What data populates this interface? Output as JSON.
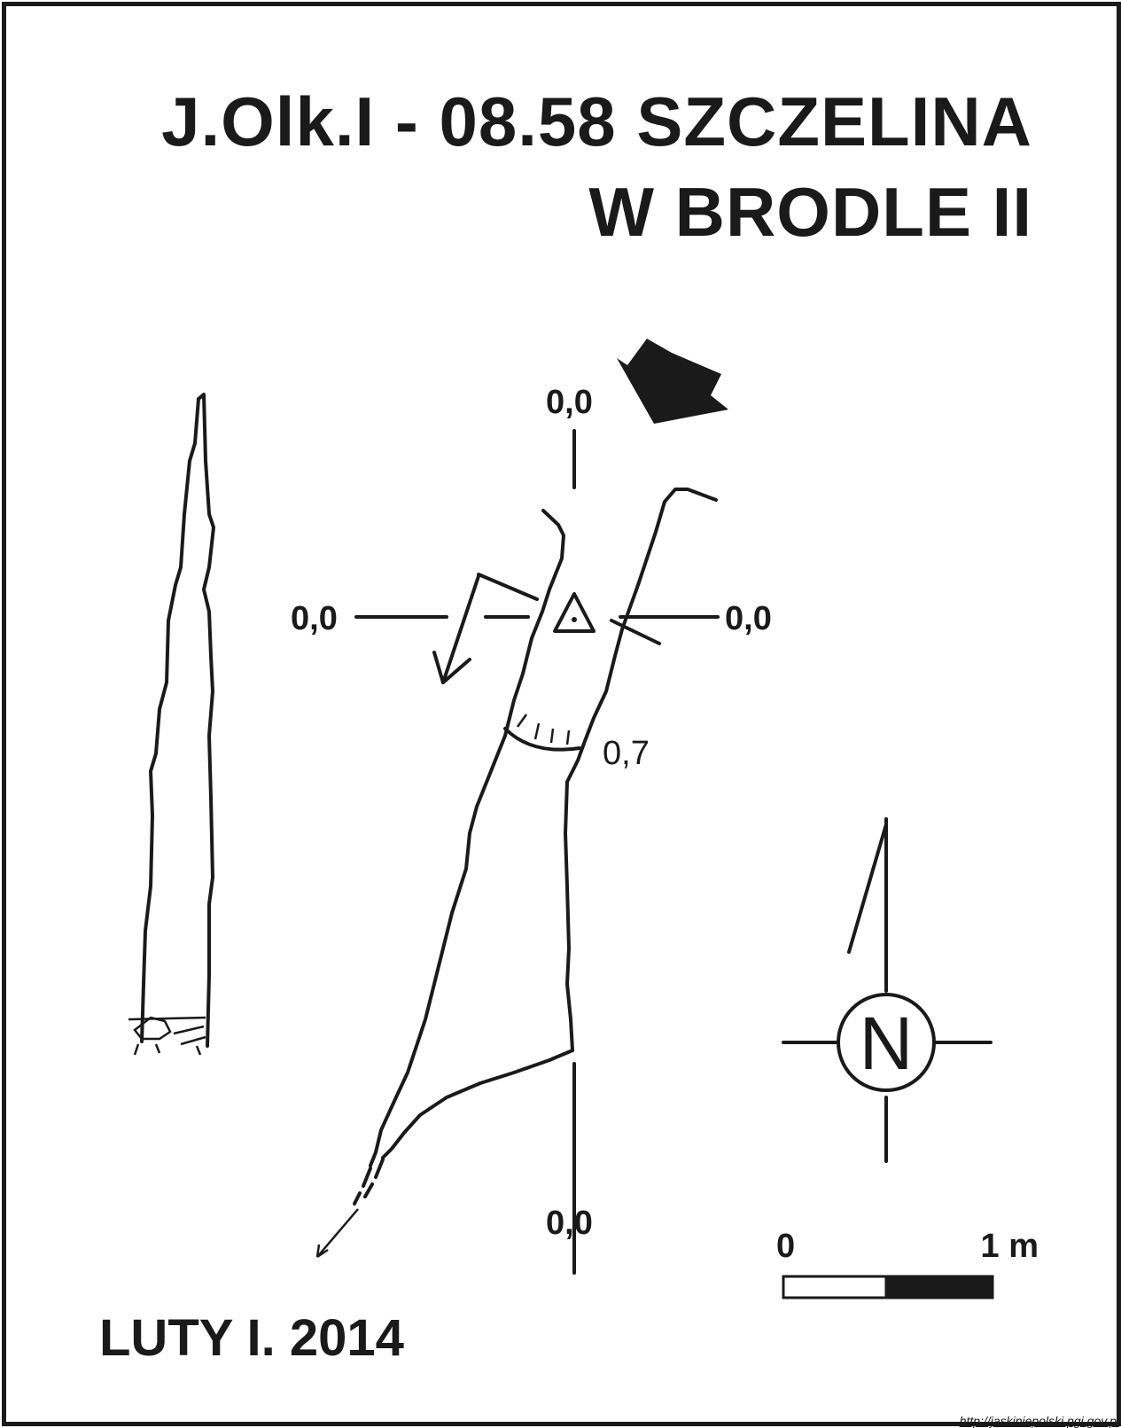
{
  "title": {
    "line1": "J.Olk.I - 08.58  SZCZELINA",
    "line2": "W BRODLE II"
  },
  "date": "LUTY I. 2014",
  "source_url": "http://jaskiniepolski.pgi.gov.pl",
  "labels": {
    "top": "0,0",
    "left": "0,0",
    "right": "0,0",
    "bottom": "0,0",
    "depth": "0,7"
  },
  "compass": {
    "letter": "N",
    "icon": "north-arrow-icon"
  },
  "scale": {
    "start": "0",
    "end": "1 m"
  },
  "colors": {
    "ink": "#1a1a1a",
    "paper": "#ffffff"
  }
}
